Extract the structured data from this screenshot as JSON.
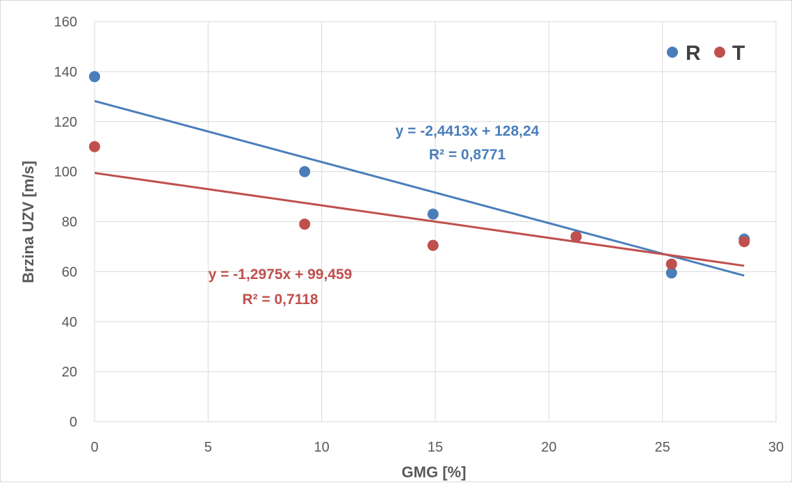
{
  "chart_data": {
    "type": "scatter",
    "xlabel": "GMG [%]",
    "ylabel": "Brzina UZV [m/s]",
    "xlim": [
      0,
      30
    ],
    "ylim": [
      0,
      160
    ],
    "xticks": [
      0,
      5,
      10,
      15,
      20,
      25,
      30
    ],
    "yticks": [
      0,
      20,
      40,
      60,
      80,
      100,
      120,
      140,
      160
    ],
    "grid": true,
    "legend": "top-right",
    "series": [
      {
        "name": "R",
        "color": "#4a7ebb",
        "x": [
          0,
          9.25,
          14.9,
          21.2,
          25.4,
          28.6
        ],
        "y": [
          138,
          100,
          83,
          74,
          59.5,
          73
        ],
        "trendline": {
          "slope": -2.4413,
          "intercept": 128.24,
          "x_range": [
            0,
            28.6
          ],
          "equation": "y = -2,4413x + 128,24",
          "r2": "R² = 0,8771"
        }
      },
      {
        "name": "T",
        "color": "#c0504d",
        "x": [
          0,
          9.25,
          14.9,
          21.2,
          25.4,
          28.6
        ],
        "y": [
          110,
          79,
          70.5,
          74,
          63,
          72
        ],
        "trendline": {
          "slope": -1.2975,
          "intercept": 99.459,
          "x_range": [
            0,
            28.6
          ],
          "equation": "y = -1,2975x + 99,459",
          "r2": "R² = 0,7118"
        }
      }
    ]
  }
}
